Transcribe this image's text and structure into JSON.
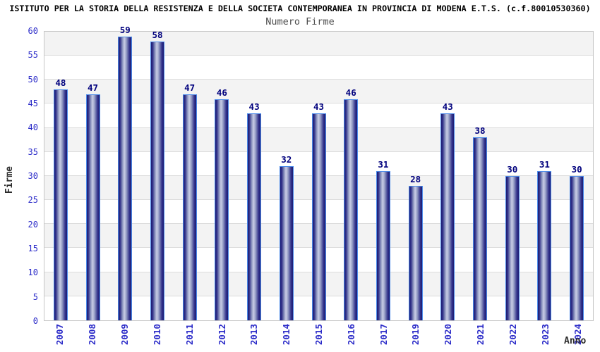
{
  "chart_data": {
    "type": "bar",
    "title": "ISTITUTO PER LA STORIA DELLA RESISTENZA E DELLA SOCIETA CONTEMPORANEA IN PROVINCIA DI MODENA E.T.S. (c.f.80010530360)",
    "subtitle": "Numero Firme",
    "xlabel": "Anno",
    "ylabel": "Firme",
    "categories": [
      "2007",
      "2008",
      "2009",
      "2010",
      "2011",
      "2012",
      "2013",
      "2014",
      "2015",
      "2016",
      "2017",
      "2019",
      "2020",
      "2021",
      "2022",
      "2023",
      "2024"
    ],
    "values": [
      48,
      47,
      59,
      58,
      47,
      46,
      43,
      32,
      43,
      46,
      31,
      28,
      43,
      38,
      30,
      31,
      30
    ],
    "ylim": [
      0,
      60
    ],
    "ytick_step": 5,
    "grid": "horizontal gridlines every 5 units with alternating gray/white bands",
    "legend": "none",
    "bar_value_labels": "shown above each bar",
    "x_tick_rotation": "90deg counterclockwise"
  },
  "colors": {
    "bar_edge": "#1b1b72",
    "bar_center": "#c9cde6",
    "bar_border": "#4c8bea",
    "axis_tick_text": "#2a2ac8",
    "value_label_text": "#00007d",
    "title_text": "#000000",
    "subtitle_text": "#4d4d4d",
    "axis_title_text": "#2b2b2b",
    "band_gray": "#f3f3f3",
    "band_white": "#ffffff",
    "gridline": "#dcdcdc",
    "plot_border": "#c6c6c6"
  }
}
